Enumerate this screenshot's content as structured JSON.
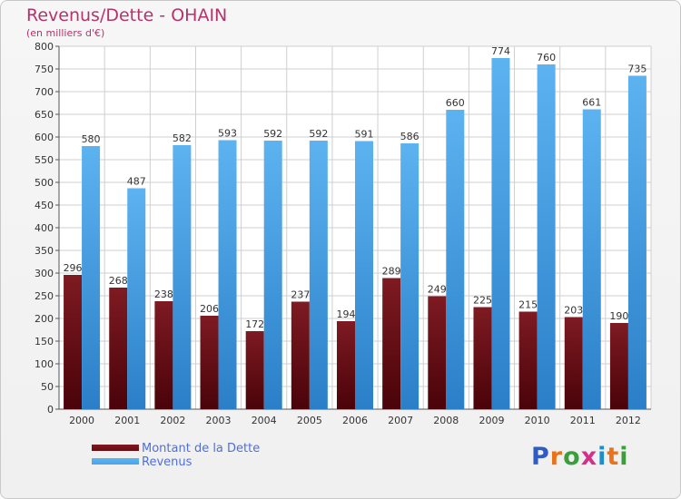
{
  "title": "Revenus/Dette - OHAIN",
  "subtitle": "(en milliers d'€)",
  "logo": {
    "text": "Proxiti",
    "letter_colors": [
      "#2e5cc4",
      "#e8731a",
      "#3c9d3c",
      "#d62f8a",
      "#1c8ec9",
      "#e8731a",
      "#3c9d3c"
    ]
  },
  "colors": {
    "dette": "#6b0a12",
    "revenus": "#4aa4e8",
    "title": "#b5336d",
    "grid": "#cfcfcf"
  },
  "chart_data": {
    "type": "bar",
    "title": "Revenus/Dette - OHAIN",
    "subtitle": "(en milliers d'€)",
    "categories": [
      "2000",
      "2001",
      "2002",
      "2003",
      "2004",
      "2005",
      "2006",
      "2007",
      "2008",
      "2009",
      "2010",
      "2011",
      "2012"
    ],
    "series": [
      {
        "name": "Montant de la Dette",
        "values": [
          296,
          268,
          238,
          206,
          172,
          237,
          194,
          289,
          249,
          225,
          215,
          203,
          190
        ]
      },
      {
        "name": "Revenus",
        "values": [
          580,
          487,
          582,
          593,
          592,
          592,
          591,
          586,
          660,
          774,
          760,
          661,
          735
        ]
      }
    ],
    "ylim": [
      0,
      800
    ],
    "yticks": [
      0,
      50,
      100,
      150,
      200,
      250,
      300,
      350,
      400,
      450,
      500,
      550,
      600,
      650,
      700,
      750,
      800
    ],
    "grid": true,
    "legend": "bottom-left",
    "data_labels": true
  }
}
